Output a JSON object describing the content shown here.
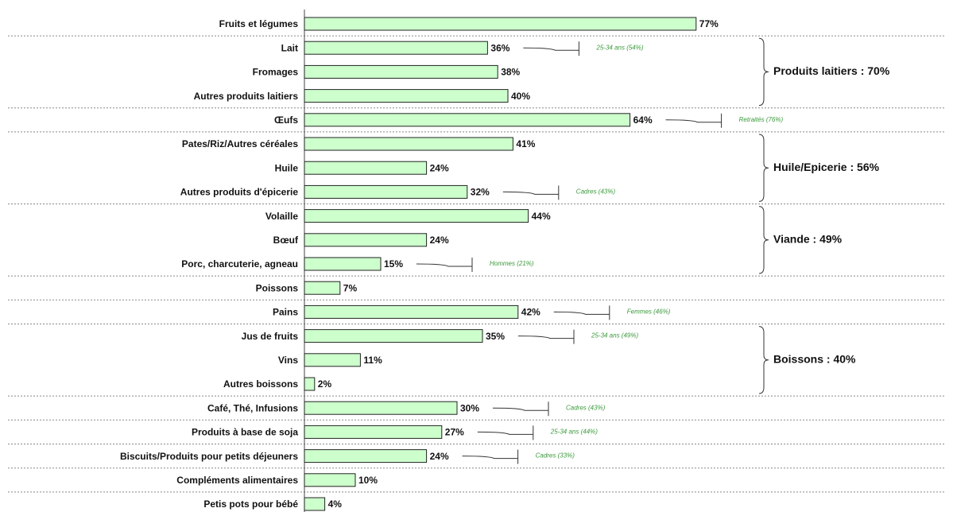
{
  "chart_data": {
    "type": "barh",
    "color": "#ccffcc",
    "categories": [
      "Fruits et légumes",
      "Lait",
      "Fromages",
      "Autres produits laitiers",
      "Œufs",
      "Pates/Riz/Autres céréales",
      "Huile",
      "Autres produits d'épicerie",
      "Volaille",
      "Bœuf",
      "Porc, charcuterie, agneau",
      "Poissons",
      "Pains",
      "Jus de fruits",
      "Vins",
      "Autres boissons",
      "Café, Thé, Infusions",
      "Produits à base de soja",
      "Biscuits/Produits pour petits déjeuners",
      "Compléments alimentaires",
      "Petis pots pour bébé"
    ],
    "values": [
      77,
      36,
      38,
      40,
      64,
      41,
      24,
      32,
      44,
      24,
      15,
      7,
      42,
      35,
      11,
      2,
      30,
      27,
      24,
      10,
      4
    ],
    "value_labels": [
      "77%",
      "36%",
      "38%",
      "40%",
      "64%",
      "41%",
      "24%",
      "32%",
      "44%",
      "24%",
      "15%",
      "7%",
      "42%",
      "35%",
      "11%",
      "2%",
      "30%",
      "27%",
      "24%",
      "10%",
      "4%"
    ],
    "annotations": [
      null,
      "25-34 ans (54%)",
      null,
      null,
      "Retraités (76%)",
      null,
      null,
      "Cadres (43%)",
      null,
      null,
      "Hommes (21%)",
      null,
      "Femmes (46%)",
      "25-34 ans (49%)",
      null,
      null,
      "Cadres (43%)",
      "25-34 ans (44%)",
      "Cadres (33%)",
      null,
      null
    ],
    "groups": [
      {
        "label": "Produits laitiers : 70%",
        "members": [
          "Lait",
          "Fromages",
          "Autres produits laitiers"
        ]
      },
      {
        "label": "Huile/Epicerie : 56%",
        "members": [
          "Pates/Riz/Autres céréales",
          "Huile",
          "Autres produits d'épicerie"
        ]
      },
      {
        "label": "Viande : 49%",
        "members": [
          "Volaille",
          "Bœuf",
          "Porc, charcuterie, agneau"
        ]
      },
      {
        "label": "Boissons : 40%",
        "members": [
          "Jus de fruits",
          "Vins",
          "Autres boissons"
        ]
      }
    ],
    "xlim": [
      0,
      100
    ]
  }
}
